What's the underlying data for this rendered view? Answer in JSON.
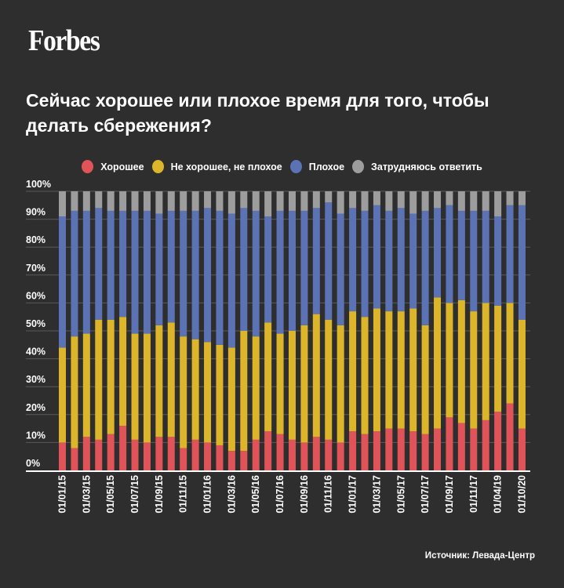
{
  "brand": "Forbes",
  "title": "Сейчас хорошее или плохое время для того, чтобы делать сбережения?",
  "source": "Источник: Левада-Центр",
  "colors": {
    "background": "#2e2e2e",
    "good": "#e05459",
    "neutral": "#dcb52a",
    "bad": "#5b73b5",
    "unsure": "#9d9d9d",
    "grid": "#5a5a5a",
    "axis": "#ffffff"
  },
  "legend": [
    {
      "key": "good",
      "label": "Хорошее",
      "color": "#e05459"
    },
    {
      "key": "neutral",
      "label": "Не хорошее, не плохое",
      "color": "#dcb52a"
    },
    {
      "key": "bad",
      "label": "Плохое",
      "color": "#5b73b5"
    },
    {
      "key": "unsure",
      "label": "Затрудняюсь ответить",
      "color": "#9d9d9d"
    }
  ],
  "chart_data": {
    "type": "bar",
    "stacked": true,
    "title": "Сейчас хорошее или плохое время для того, чтобы делать сбережения?",
    "xlabel": "",
    "ylabel": "",
    "ylim": [
      0,
      100
    ],
    "yticks": [
      "0%",
      "10%",
      "20%",
      "30%",
      "40%",
      "50%",
      "60%",
      "70%",
      "80%",
      "90%",
      "100%"
    ],
    "grid": true,
    "legend_position": "top-center",
    "x_tick_labels": [
      "01/01/15",
      "01/03/15",
      "01/05/15",
      "01/07/15",
      "01/09/15",
      "01/11/15",
      "01/01/16",
      "01/03/16",
      "01/05/16",
      "01/07/16",
      "01/09/16",
      "01/11/16",
      "01/01/17",
      "01/03/17",
      "01/05/17",
      "01/07/17",
      "01/09/17",
      "01/11/17",
      "01/04/19",
      "01/10/20"
    ],
    "x_tick_every": 2,
    "bar_count": 39,
    "series": [
      {
        "name": "Хорошее",
        "values": [
          10,
          8,
          12,
          11,
          13,
          16,
          11,
          10,
          12,
          12,
          8,
          11,
          10,
          9,
          7,
          7,
          11,
          14,
          13,
          11,
          10,
          12,
          11,
          10,
          14,
          13,
          14,
          15,
          15,
          14,
          13,
          15,
          19,
          17,
          15,
          18,
          21,
          24,
          15
        ]
      },
      {
        "name": "Не хорошее, не плохое",
        "values": [
          34,
          40,
          37,
          43,
          41,
          39,
          38,
          39,
          40,
          41,
          40,
          36,
          36,
          36,
          37,
          43,
          37,
          39,
          36,
          39,
          42,
          44,
          43,
          42,
          43,
          42,
          44,
          42,
          42,
          44,
          39,
          47,
          41,
          44,
          42,
          42,
          38,
          36,
          39
        ]
      },
      {
        "name": "Плохое",
        "values": [
          47,
          45,
          44,
          40,
          39,
          38,
          44,
          44,
          40,
          40,
          45,
          46,
          48,
          48,
          48,
          44,
          45,
          38,
          44,
          43,
          41,
          38,
          42,
          40,
          37,
          38,
          37,
          36,
          37,
          34,
          41,
          32,
          35,
          32,
          36,
          33,
          32,
          35,
          41
        ]
      },
      {
        "name": "Затрудняюсь ответить",
        "values": [
          9,
          7,
          7,
          6,
          7,
          7,
          7,
          7,
          8,
          7,
          7,
          7,
          6,
          7,
          8,
          6,
          7,
          9,
          7,
          7,
          7,
          6,
          4,
          8,
          6,
          7,
          5,
          7,
          6,
          8,
          7,
          6,
          5,
          7,
          7,
          7,
          9,
          5,
          5
        ]
      }
    ]
  }
}
